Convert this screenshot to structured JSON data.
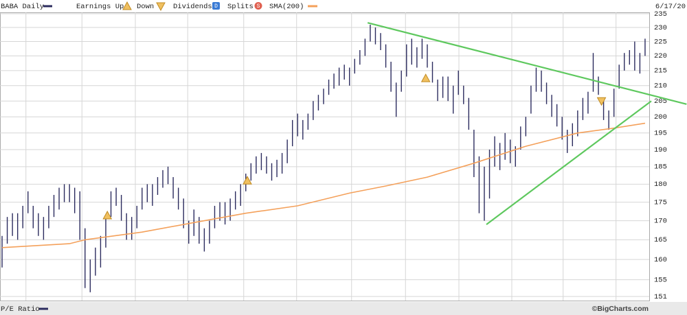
{
  "chart_data": {
    "type": "ohlc",
    "date_label": "6/17/20",
    "credit": "©BigCharts.com",
    "log_scale": true,
    "grid": true,
    "ylim": [
      151,
      235
    ],
    "yticks": [
      151,
      155,
      160,
      165,
      170,
      175,
      180,
      185,
      190,
      195,
      200,
      205,
      210,
      215,
      220,
      225,
      230,
      235
    ],
    "xlim": [
      -0.4,
      124.8
    ],
    "xticks": [
      4.6,
      15.4,
      25.7,
      35.8,
      46.6,
      56.8,
      67.4,
      77.8,
      88.1,
      98.3,
      108.2,
      118.4
    ],
    "series": [
      {
        "name": "BABA Daily",
        "color": "#2b2b5e",
        "high": [
          166,
          171,
          172,
          172,
          174,
          178,
          174,
          172,
          171,
          174,
          177,
          179,
          180,
          180,
          179,
          178,
          168,
          160,
          163,
          166,
          171,
          178,
          179,
          177,
          172,
          171,
          174,
          179,
          180,
          180,
          182,
          184,
          185,
          182,
          179,
          176,
          170,
          173,
          171,
          168,
          170,
          174,
          175,
          175,
          176,
          178,
          180,
          183,
          186,
          188,
          189,
          188,
          186,
          187,
          189,
          193,
          199,
          201,
          199,
          201,
          205,
          207,
          209,
          212,
          214,
          216,
          217,
          216,
          219,
          222,
          226,
          231,
          230,
          228,
          224,
          218,
          211,
          215,
          224,
          226,
          223,
          226,
          224,
          218,
          212,
          213,
          213,
          210,
          215,
          210,
          206,
          196,
          188,
          185,
          190,
          194,
          192,
          195,
          193,
          191,
          197,
          200,
          210,
          216,
          215,
          211,
          207,
          204,
          200,
          196,
          198,
          202,
          206,
          208,
          221,
          213,
          206,
          202,
          209,
          217,
          221,
          222,
          225,
          221,
          226
        ],
        "low": [
          158,
          164,
          166,
          165,
          168,
          172,
          168,
          166,
          165,
          168,
          171,
          173,
          175,
          175,
          172,
          165,
          153,
          152,
          156,
          158,
          163,
          171,
          174,
          170,
          165,
          165,
          168,
          173,
          175,
          174,
          177,
          179,
          180,
          176,
          173,
          168,
          164,
          166,
          164,
          162,
          164,
          168,
          170,
          169,
          170,
          173,
          174,
          178,
          181,
          183,
          184,
          183,
          181,
          182,
          183,
          186,
          191,
          194,
          193,
          196,
          199,
          202,
          204,
          207,
          209,
          210,
          212,
          210,
          214,
          217,
          220,
          225,
          224,
          222,
          216,
          208,
          200,
          208,
          213,
          217,
          216,
          219,
          216,
          211,
          205,
          206,
          205,
          201,
          207,
          204,
          196,
          182,
          172,
          170,
          176,
          185,
          184,
          187,
          186,
          185,
          190,
          194,
          201,
          208,
          208,
          204,
          200,
          197,
          193,
          189,
          191,
          194,
          199,
          201,
          208,
          207,
          199,
          196,
          200,
          209,
          215,
          217,
          215,
          214,
          220
        ]
      }
    ],
    "sma": {
      "name": "SMA(200)",
      "color": "#f4a05a",
      "x": [
        0,
        13,
        16,
        27,
        37,
        47,
        57,
        67,
        74,
        82,
        91,
        101,
        111,
        118,
        124
      ],
      "values": [
        163,
        164,
        165,
        167,
        169.5,
        172,
        174,
        177.5,
        179.5,
        182,
        186,
        191,
        195,
        196.5,
        198
      ]
    },
    "trendlines": [
      {
        "color": "#5ec85e",
        "x": [
          70.5,
          132
        ],
        "values": [
          231.7,
          204
        ]
      },
      {
        "color": "#5ec85e",
        "x": [
          93.4,
          125.2
        ],
        "values": [
          169,
          205
        ]
      }
    ],
    "earnings_up": {
      "name": "Earnings Up",
      "color": "#f0c060",
      "x": [
        20.3,
        47.3,
        81.7
      ],
      "values": [
        171.4,
        181,
        212.4
      ]
    },
    "earnings_down": {
      "name": "Down",
      "color": "#f0c060",
      "x": [
        115.6
      ],
      "values": [
        205
      ]
    },
    "dividends": {
      "name": "Dividends",
      "icon": "D",
      "color": "#3a7bd5"
    },
    "splits": {
      "name": "Splits",
      "icon": "S",
      "color": "#e06050"
    },
    "pe_panel": {
      "name": "P/E Ratio"
    }
  }
}
